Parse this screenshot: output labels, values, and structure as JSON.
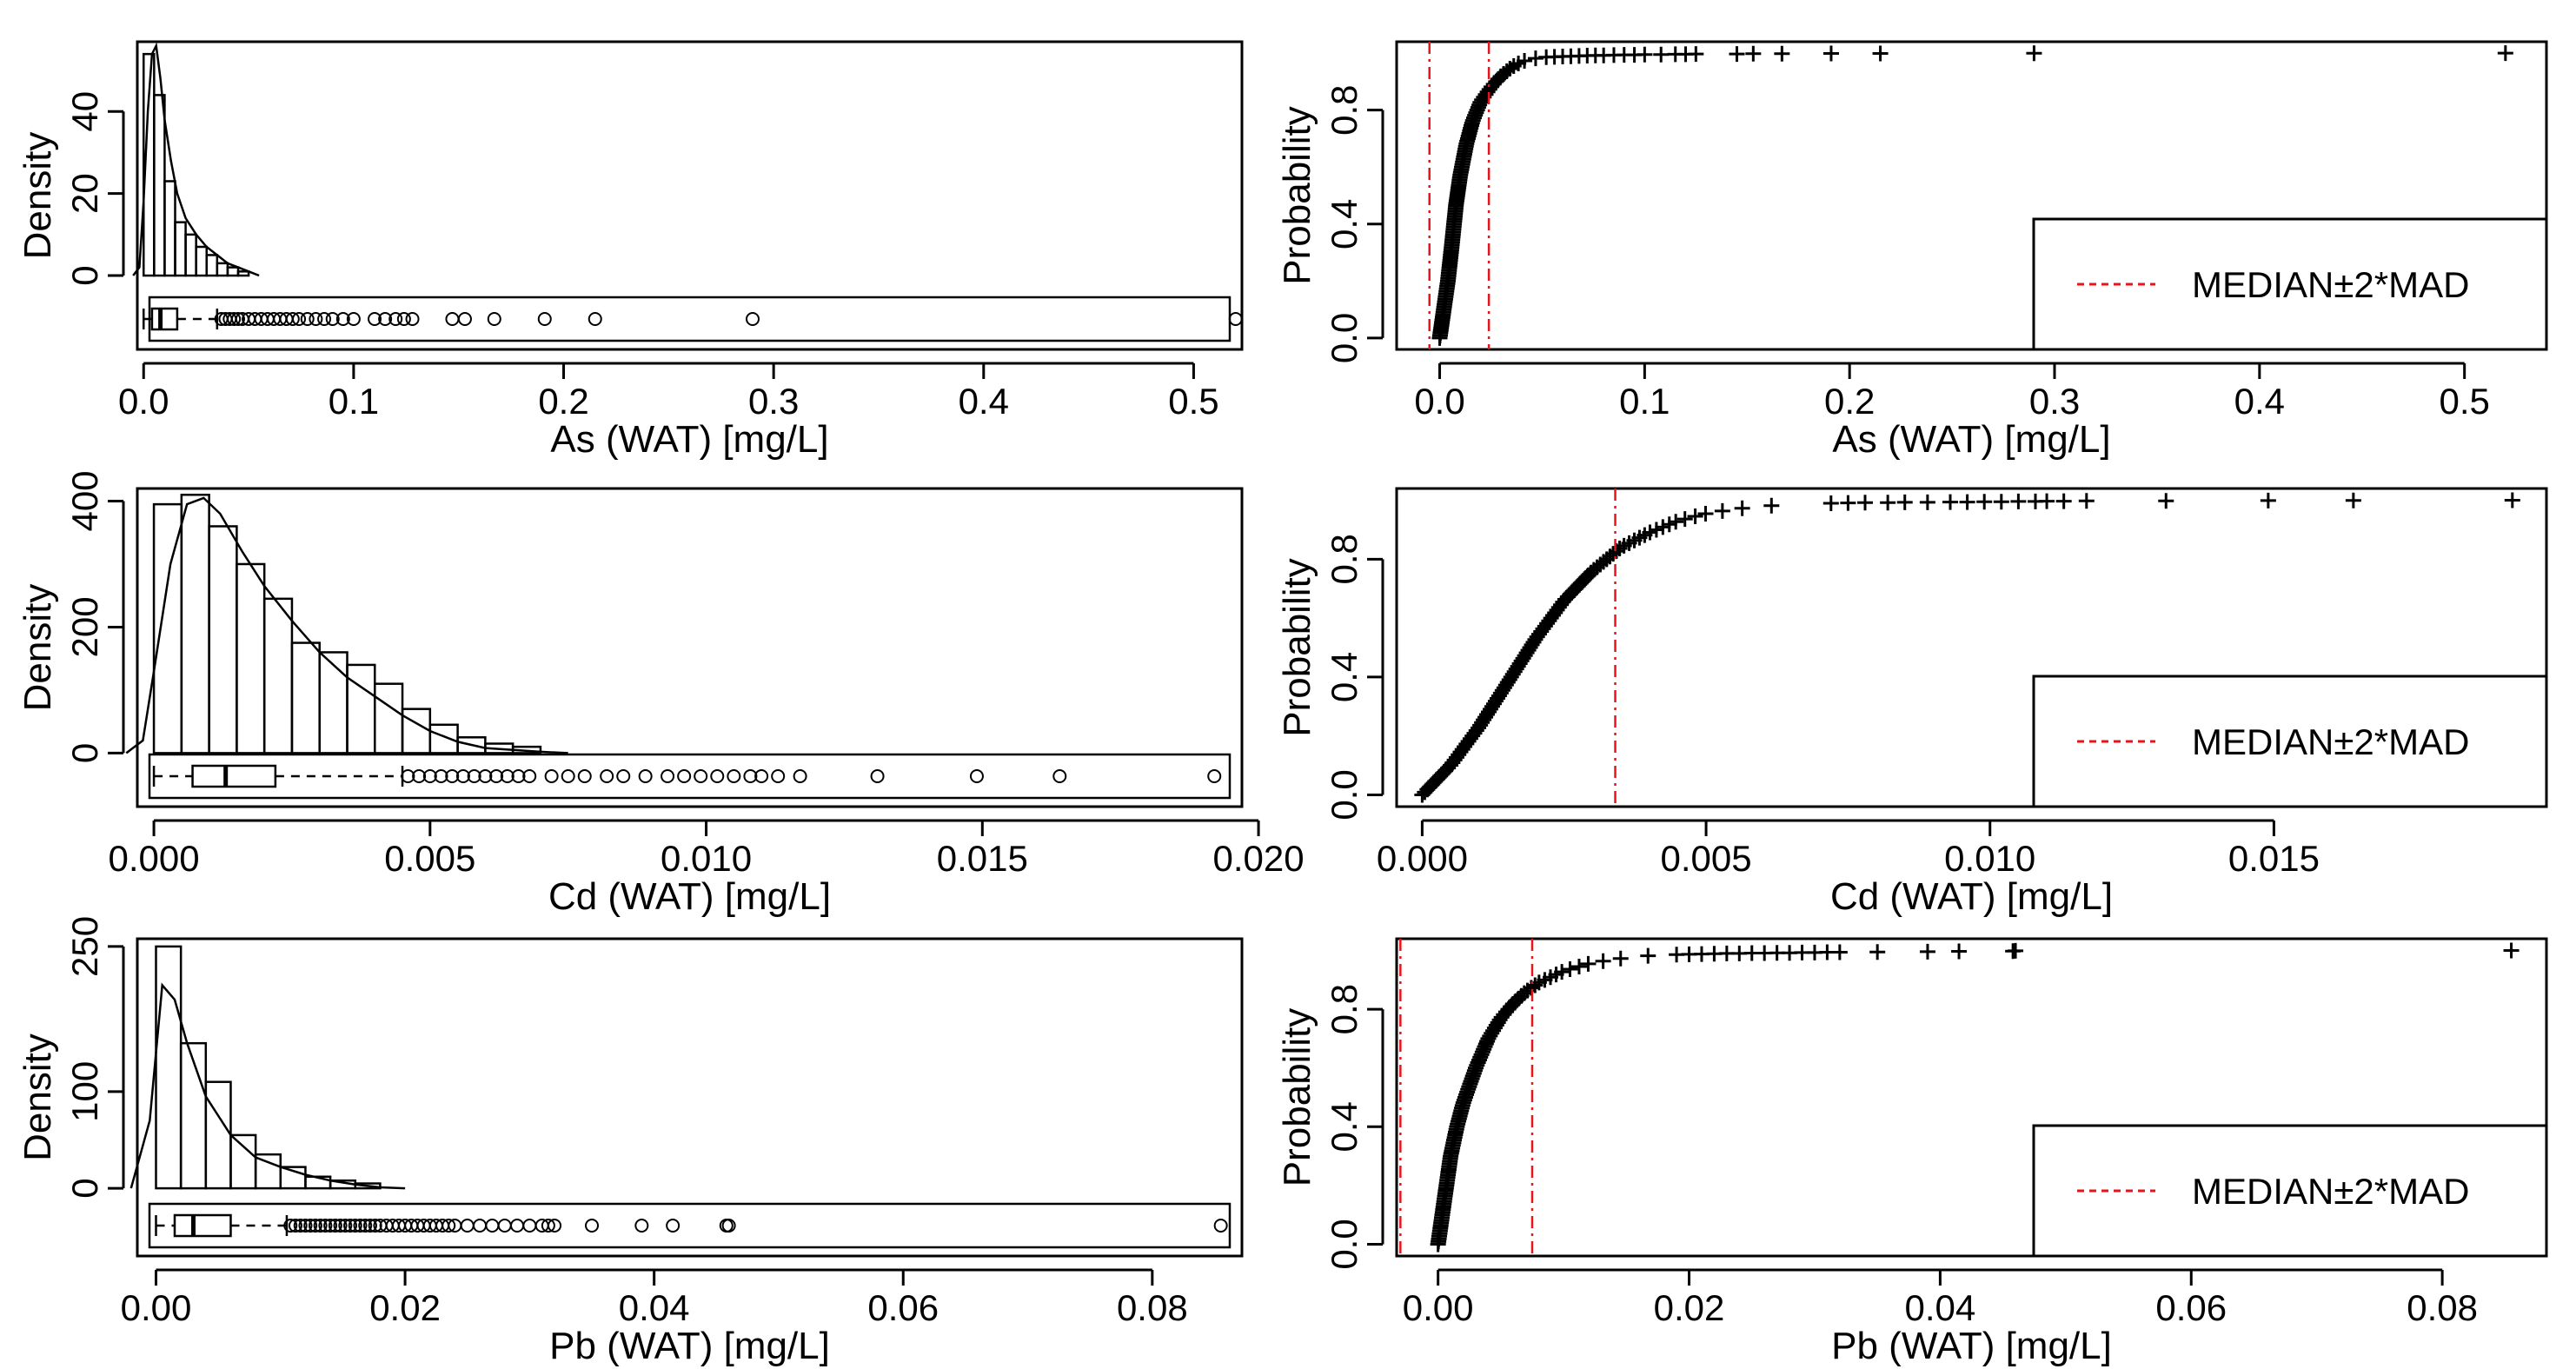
{
  "legend_label": "MEDIAN±2*MAD",
  "chart_data": [
    {
      "id": "as-hist",
      "type": "histogram",
      "xlabel": "As (WAT) [mg/L]",
      "ylabel": "Density",
      "xlim": [
        -0.003,
        0.523
      ],
      "ylim": [
        -18,
        57
      ],
      "xticks": [
        0.0,
        0.1,
        0.2,
        0.3,
        0.4,
        0.5
      ],
      "xtick_labels": [
        "0.0",
        "0.1",
        "0.2",
        "0.3",
        "0.4",
        "0.5"
      ],
      "yticks": [
        0,
        20,
        40
      ],
      "ytick_labels": [
        "0",
        "20",
        "40"
      ],
      "bins": [
        0.0,
        0.005,
        0.01,
        0.015,
        0.02,
        0.025,
        0.03,
        0.035,
        0.04,
        0.045,
        0.05
      ],
      "density": [
        54,
        44,
        23,
        13,
        10,
        7,
        5,
        3,
        2,
        1
      ],
      "kde": [
        [
          -0.005,
          0
        ],
        [
          -0.002,
          2
        ],
        [
          0.0,
          18
        ],
        [
          0.002,
          40
        ],
        [
          0.004,
          54
        ],
        [
          0.006,
          56
        ],
        [
          0.008,
          48
        ],
        [
          0.01,
          38
        ],
        [
          0.013,
          28
        ],
        [
          0.016,
          20
        ],
        [
          0.02,
          14
        ],
        [
          0.025,
          10
        ],
        [
          0.03,
          7
        ],
        [
          0.035,
          5
        ],
        [
          0.04,
          3
        ],
        [
          0.045,
          2
        ],
        [
          0.05,
          1
        ],
        [
          0.055,
          0
        ]
      ],
      "box": {
        "q1": 0.004,
        "median": 0.008,
        "q3": 0.016,
        "whisker_low": 0.0,
        "whisker_high": 0.035
      },
      "outliers": [
        0.037,
        0.039,
        0.041,
        0.043,
        0.045,
        0.047,
        0.05,
        0.053,
        0.056,
        0.059,
        0.062,
        0.065,
        0.068,
        0.071,
        0.074,
        0.078,
        0.082,
        0.086,
        0.09,
        0.095,
        0.1,
        0.11,
        0.115,
        0.12,
        0.124,
        0.128,
        0.147,
        0.153,
        0.167,
        0.191,
        0.215,
        0.29,
        0.52
      ]
    },
    {
      "id": "as-ecdf",
      "type": "ecdf",
      "xlabel": "As (WAT) [mg/L]",
      "ylabel": "Probability",
      "xlim": [
        -0.021,
        0.54
      ],
      "ylim": [
        -0.04,
        1.04
      ],
      "xticks": [
        0.0,
        0.1,
        0.2,
        0.3,
        0.4,
        0.5
      ],
      "xtick_labels": [
        "0.0",
        "0.1",
        "0.2",
        "0.3",
        "0.4",
        "0.5"
      ],
      "yticks": [
        0.0,
        0.4,
        0.8
      ],
      "ytick_labels": [
        "0.0",
        "0.4",
        "0.8"
      ],
      "ecdf_curve": [
        [
          0.0,
          0.0
        ],
        [
          0.002,
          0.1
        ],
        [
          0.004,
          0.2
        ],
        [
          0.006,
          0.33
        ],
        [
          0.008,
          0.47
        ],
        [
          0.01,
          0.57
        ],
        [
          0.013,
          0.68
        ],
        [
          0.016,
          0.76
        ],
        [
          0.02,
          0.83
        ],
        [
          0.025,
          0.88
        ],
        [
          0.03,
          0.92
        ],
        [
          0.035,
          0.95
        ],
        [
          0.04,
          0.97
        ],
        [
          0.045,
          0.98
        ],
        [
          0.05,
          0.985
        ]
      ],
      "tail_points": [
        [
          0.052,
          0.986
        ],
        [
          0.056,
          0.987
        ],
        [
          0.06,
          0.988
        ],
        [
          0.064,
          0.989
        ],
        [
          0.068,
          0.99
        ],
        [
          0.072,
          0.991
        ],
        [
          0.076,
          0.992
        ],
        [
          0.08,
          0.992
        ],
        [
          0.085,
          0.993
        ],
        [
          0.09,
          0.994
        ],
        [
          0.095,
          0.994
        ],
        [
          0.1,
          0.995
        ],
        [
          0.108,
          0.995
        ],
        [
          0.115,
          0.996
        ],
        [
          0.12,
          0.996
        ],
        [
          0.125,
          0.997
        ],
        [
          0.145,
          0.997
        ],
        [
          0.153,
          0.998
        ],
        [
          0.167,
          0.998
        ],
        [
          0.191,
          0.999
        ],
        [
          0.215,
          0.999
        ],
        [
          0.29,
          0.9995
        ],
        [
          0.52,
          1.0
        ]
      ],
      "vlines": [
        -0.005,
        0.024
      ]
    },
    {
      "id": "cd-hist",
      "type": "histogram",
      "xlabel": "Cd (WAT) [mg/L]",
      "ylabel": "Density",
      "xlim": [
        -0.0003,
        0.0197
      ],
      "ylim": [
        -85,
        420
      ],
      "xticks": [
        0.0,
        0.005,
        0.01,
        0.015,
        0.02
      ],
      "xtick_labels": [
        "0.000",
        "0.005",
        "0.010",
        "0.015",
        "0.020"
      ],
      "yticks": [
        0,
        200,
        400
      ],
      "ytick_labels": [
        "0",
        "200",
        "400"
      ],
      "bins": [
        0.0,
        0.0005,
        0.001,
        0.0015,
        0.002,
        0.0025,
        0.003,
        0.0035,
        0.004,
        0.0045,
        0.005,
        0.0055,
        0.006,
        0.0065,
        0.007
      ],
      "density": [
        395,
        410,
        360,
        300,
        245,
        175,
        160,
        140,
        110,
        70,
        45,
        25,
        15,
        10
      ],
      "kde": [
        [
          -0.0005,
          0
        ],
        [
          -0.0002,
          20
        ],
        [
          0.0,
          130
        ],
        [
          0.0003,
          300
        ],
        [
          0.0006,
          395
        ],
        [
          0.0009,
          405
        ],
        [
          0.0012,
          380
        ],
        [
          0.0016,
          320
        ],
        [
          0.002,
          265
        ],
        [
          0.0025,
          210
        ],
        [
          0.003,
          160
        ],
        [
          0.0035,
          120
        ],
        [
          0.004,
          90
        ],
        [
          0.0045,
          60
        ],
        [
          0.005,
          35
        ],
        [
          0.0055,
          18
        ],
        [
          0.006,
          8
        ],
        [
          0.007,
          2
        ],
        [
          0.0075,
          0
        ]
      ],
      "box": {
        "q1": 0.0007,
        "median": 0.0013,
        "q3": 0.0022,
        "whisker_low": 0.0,
        "whisker_high": 0.0045
      },
      "outliers": [
        0.0046,
        0.0048,
        0.005,
        0.0052,
        0.0054,
        0.0056,
        0.0058,
        0.006,
        0.0062,
        0.0064,
        0.0066,
        0.0068,
        0.0072,
        0.0075,
        0.0078,
        0.0082,
        0.0085,
        0.0089,
        0.0093,
        0.0096,
        0.0099,
        0.0102,
        0.0105,
        0.0108,
        0.011,
        0.0113,
        0.0117,
        0.0131,
        0.0149,
        0.0164,
        0.0192
      ],
      "kde_note": "curve"
    },
    {
      "id": "cd-ecdf",
      "type": "ecdf",
      "xlabel": "Cd (WAT) [mg/L]",
      "ylabel": "Probability",
      "xlim": [
        -0.00045,
        0.0198
      ],
      "ylim": [
        -0.04,
        1.04
      ],
      "xticks": [
        0.0,
        0.005,
        0.01,
        0.015
      ],
      "xtick_labels": [
        "0.000",
        "0.005",
        "0.010",
        "0.015"
      ],
      "yticks": [
        0.0,
        0.4,
        0.8
      ],
      "ytick_labels": [
        "0.0",
        "0.4",
        "0.8"
      ],
      "ecdf_curve": [
        [
          0.0,
          0.0
        ],
        [
          0.0005,
          0.1
        ],
        [
          0.001,
          0.23
        ],
        [
          0.0015,
          0.38
        ],
        [
          0.002,
          0.53
        ],
        [
          0.0025,
          0.66
        ],
        [
          0.003,
          0.76
        ],
        [
          0.0035,
          0.84
        ],
        [
          0.004,
          0.89
        ],
        [
          0.0045,
          0.93
        ],
        [
          0.005,
          0.955
        ],
        [
          0.0055,
          0.97
        ],
        [
          0.006,
          0.98
        ],
        [
          0.0065,
          0.986
        ],
        [
          0.007,
          0.99
        ]
      ],
      "tail_points": [
        [
          0.0072,
          0.99
        ],
        [
          0.0075,
          0.991
        ],
        [
          0.0078,
          0.992
        ],
        [
          0.0082,
          0.992
        ],
        [
          0.0085,
          0.993
        ],
        [
          0.0089,
          0.993
        ],
        [
          0.0093,
          0.994
        ],
        [
          0.0096,
          0.994
        ],
        [
          0.0099,
          0.995
        ],
        [
          0.0102,
          0.995
        ],
        [
          0.0105,
          0.996
        ],
        [
          0.0108,
          0.996
        ],
        [
          0.011,
          0.997
        ],
        [
          0.0113,
          0.997
        ],
        [
          0.0117,
          0.998
        ],
        [
          0.0131,
          0.998
        ],
        [
          0.0149,
          0.999
        ],
        [
          0.0164,
          0.9995
        ],
        [
          0.0192,
          1.0
        ]
      ],
      "vlines": [
        0.0034
      ]
    },
    {
      "id": "pb-hist",
      "type": "histogram",
      "xlabel": "Pb (WAT) [mg/L]",
      "ylabel": "Density",
      "xlim": [
        -0.0015,
        0.0872
      ],
      "ylim": [
        -70,
        258
      ],
      "xticks": [
        0.0,
        0.02,
        0.04,
        0.06,
        0.08
      ],
      "xtick_labels": [
        "0.00",
        "0.02",
        "0.04",
        "0.06",
        "0.08"
      ],
      "yticks": [
        0,
        100,
        250
      ],
      "ytick_labels": [
        "0",
        "100",
        "250"
      ],
      "bins": [
        0.0,
        0.002,
        0.004,
        0.006,
        0.008,
        0.01,
        0.012,
        0.014,
        0.016,
        0.018
      ],
      "density": [
        250,
        150,
        110,
        55,
        35,
        22,
        12,
        8,
        5
      ],
      "kde": [
        [
          -0.002,
          0
        ],
        [
          -0.0005,
          70
        ],
        [
          0.0005,
          210
        ],
        [
          0.0015,
          195
        ],
        [
          0.0025,
          150
        ],
        [
          0.004,
          95
        ],
        [
          0.006,
          55
        ],
        [
          0.008,
          32
        ],
        [
          0.01,
          22
        ],
        [
          0.012,
          14
        ],
        [
          0.014,
          8
        ],
        [
          0.016,
          4
        ],
        [
          0.018,
          1
        ],
        [
          0.02,
          0
        ]
      ],
      "box": {
        "q1": 0.0015,
        "median": 0.003,
        "q3": 0.006,
        "whisker_low": 0.0,
        "whisker_high": 0.0105
      },
      "outliers": [
        0.0108,
        0.0112,
        0.0116,
        0.012,
        0.0124,
        0.0128,
        0.0132,
        0.0136,
        0.014,
        0.0144,
        0.0148,
        0.0152,
        0.0156,
        0.016,
        0.0164,
        0.0168,
        0.0172,
        0.0176,
        0.018,
        0.0185,
        0.019,
        0.0195,
        0.02,
        0.0205,
        0.021,
        0.0215,
        0.022,
        0.0225,
        0.023,
        0.0235,
        0.024,
        0.025,
        0.026,
        0.027,
        0.028,
        0.029,
        0.03,
        0.031,
        0.0315,
        0.032,
        0.035,
        0.039,
        0.0415,
        0.0458,
        0.046,
        0.0855
      ]
    },
    {
      "id": "pb-ecdf",
      "type": "ecdf",
      "xlabel": "Pb (WAT) [mg/L]",
      "ylabel": "Probability",
      "xlim": [
        -0.0033,
        0.0883
      ],
      "ylim": [
        -0.04,
        1.04
      ],
      "xticks": [
        0.0,
        0.02,
        0.04,
        0.06,
        0.08
      ],
      "xtick_labels": [
        "0.00",
        "0.02",
        "0.04",
        "0.06",
        "0.08"
      ],
      "yticks": [
        0.0,
        0.4,
        0.8
      ],
      "ytick_labels": [
        "0.0",
        "0.4",
        "0.8"
      ],
      "ecdf_curve": [
        [
          0.0,
          0.0
        ],
        [
          0.0005,
          0.15
        ],
        [
          0.001,
          0.3
        ],
        [
          0.0015,
          0.4
        ],
        [
          0.002,
          0.48
        ],
        [
          0.003,
          0.6
        ],
        [
          0.004,
          0.7
        ],
        [
          0.005,
          0.77
        ],
        [
          0.006,
          0.82
        ],
        [
          0.007,
          0.86
        ],
        [
          0.008,
          0.89
        ],
        [
          0.01,
          0.93
        ],
        [
          0.012,
          0.955
        ],
        [
          0.014,
          0.97
        ],
        [
          0.016,
          0.98
        ],
        [
          0.018,
          0.985
        ]
      ],
      "tail_points": [
        [
          0.019,
          0.986
        ],
        [
          0.02,
          0.987
        ],
        [
          0.021,
          0.988
        ],
        [
          0.022,
          0.989
        ],
        [
          0.023,
          0.99
        ],
        [
          0.024,
          0.99
        ],
        [
          0.025,
          0.991
        ],
        [
          0.026,
          0.991
        ],
        [
          0.027,
          0.992
        ],
        [
          0.028,
          0.992
        ],
        [
          0.029,
          0.993
        ],
        [
          0.03,
          0.993
        ],
        [
          0.031,
          0.994
        ],
        [
          0.032,
          0.994
        ],
        [
          0.035,
          0.995
        ],
        [
          0.039,
          0.996
        ],
        [
          0.0415,
          0.997
        ],
        [
          0.0458,
          0.998
        ],
        [
          0.046,
          0.999
        ],
        [
          0.0855,
          1.0
        ]
      ],
      "vlines": [
        -0.003,
        0.0075
      ]
    }
  ]
}
